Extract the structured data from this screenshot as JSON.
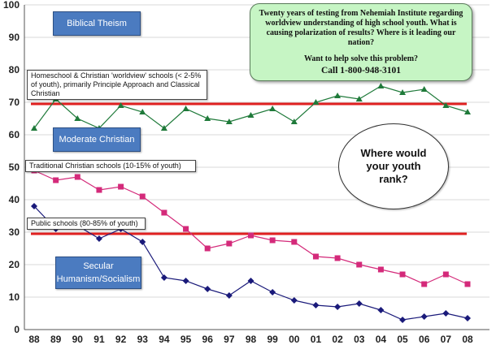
{
  "chart_data": {
    "type": "line",
    "x": [
      "88",
      "89",
      "90",
      "91",
      "92",
      "93",
      "94",
      "95",
      "96",
      "97",
      "98",
      "99",
      "00",
      "01",
      "02",
      "03",
      "04",
      "05",
      "06",
      "07",
      "08"
    ],
    "ylim": [
      0,
      100
    ],
    "yticks": [
      0,
      10,
      20,
      30,
      40,
      50,
      60,
      70,
      80,
      90,
      100
    ],
    "grid": true,
    "series": [
      {
        "name": "Homeschool & Christian 'worldview' schools (< 2-5% of youth), primarily Principle Approach and Classical Christian",
        "color": "#1f7a3a",
        "marker": "triangle",
        "values": [
          62,
          71,
          65,
          62,
          69,
          67,
          62,
          68,
          65,
          64,
          66,
          68,
          64,
          70,
          72,
          71,
          75,
          73,
          74,
          69,
          67
        ]
      },
      {
        "name": "Traditional Christian schools (10-15% of youth)",
        "color": "#d42a7a",
        "marker": "square",
        "values": [
          49,
          46,
          47,
          43,
          44,
          41,
          36,
          31,
          25,
          26.5,
          29,
          27.5,
          27,
          22.5,
          22,
          20,
          18.5,
          17,
          14,
          17,
          14
        ]
      },
      {
        "name": "Public schools (80-85% of youth)",
        "color": "#1a1a7a",
        "marker": "diamond",
        "values": [
          38,
          31,
          32,
          28,
          31,
          27,
          16,
          15,
          12.5,
          10.5,
          15,
          11.5,
          9,
          7.5,
          7,
          8,
          6,
          3,
          4,
          5,
          3.5
        ]
      }
    ],
    "reference_lines": [
      {
        "y": 69.5,
        "color": "#e02020"
      },
      {
        "y": 29.5,
        "color": "#e02020"
      }
    ],
    "band_labels": [
      {
        "text": "Biblical Theism",
        "color": "#4b7bc0"
      },
      {
        "text": "Moderate Christian",
        "color": "#4b7bc0"
      },
      {
        "text": "Secular Humanism/Socialism",
        "color": "#4b7bc0"
      }
    ],
    "callout": {
      "line1": "Twenty years of testing from Nehemiah Institute regarding worldview understanding of high school youth.  What is causing polarization of results? Where is it leading our nation?",
      "line2": "Want to help solve this problem?",
      "phone": "Call 1-800-948-3101"
    },
    "ellipse_text": "Where would your youth rank?"
  }
}
